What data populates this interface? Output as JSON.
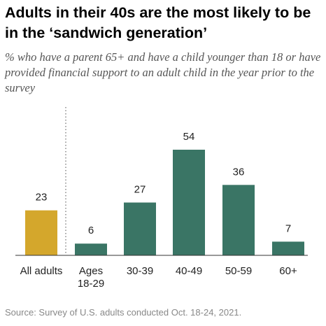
{
  "title": "Adults in their 40s are the most likely to be in the ‘sandwich generation’",
  "subtitle": "% who have a parent 65+ and have a child younger than 18 or have provided financial support to an adult child in the year prior to the survey",
  "source": "Source: Survey of U.S. adults conducted Oct. 18-24, 2021.",
  "colors": {
    "highlight": "#D4A72C",
    "bar": "#3A7565",
    "divider": "#888888",
    "baseline": "#333333"
  },
  "chart_data": {
    "type": "bar",
    "title": "Adults in their 40s are the most likely to be in the ‘sandwich generation’",
    "subtitle": "% who have a parent 65+ and have a child younger than 18 or have provided financial support to an adult child in the year prior to the survey",
    "categories": [
      "All adults",
      "Ages 18-29",
      "30-39",
      "40-49",
      "50-59",
      "60+"
    ],
    "category_lines": [
      [
        "All adults"
      ],
      [
        "Ages",
        "18-29"
      ],
      [
        "30-39"
      ],
      [
        "40-49"
      ],
      [
        "50-59"
      ],
      [
        "60+"
      ]
    ],
    "values": [
      23,
      6,
      27,
      54,
      36,
      7
    ],
    "highlight_index": 0,
    "ylim": [
      0,
      54
    ],
    "grid": false,
    "xlabel": "",
    "ylabel": ""
  }
}
